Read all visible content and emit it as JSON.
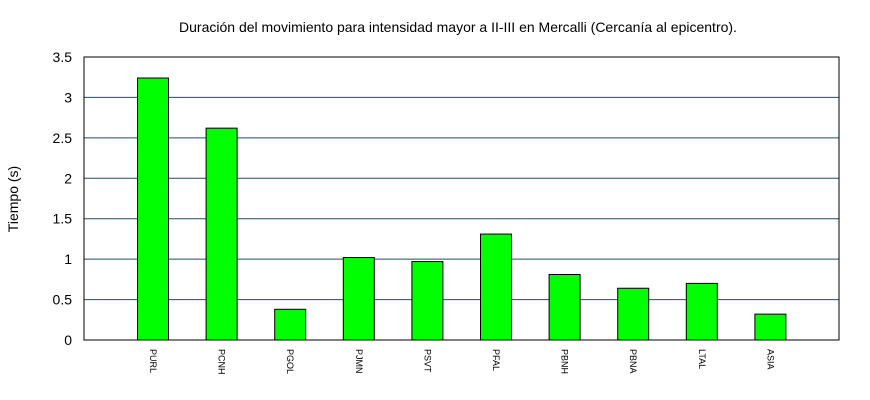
{
  "chart_data": {
    "type": "bar",
    "title": "Duración del movimiento para intensidad mayor a II-III en Mercalli (Cercanía al epicentro).",
    "xlabel": "",
    "ylabel": "Tiempo (s)",
    "categories": [
      "PURL",
      "PCNH",
      "PGOL",
      "PJMN",
      "PSVT",
      "PFAL",
      "PBNH",
      "PBNA",
      "LTAL",
      "ASIA"
    ],
    "values": [
      3.24,
      2.62,
      0.38,
      1.02,
      0.97,
      1.31,
      0.81,
      0.64,
      0.7,
      0.32
    ],
    "ylim": [
      0,
      3.5
    ],
    "yticks": [
      "0",
      "0.5",
      "1",
      "1.5",
      "2",
      "2.5",
      "3",
      "3.5"
    ],
    "grid": true,
    "legend": "none",
    "colors": {
      "bar": "#00ff00",
      "bar_stroke": "#000000",
      "grid": "#1f4f66",
      "axis": "#000000"
    }
  }
}
